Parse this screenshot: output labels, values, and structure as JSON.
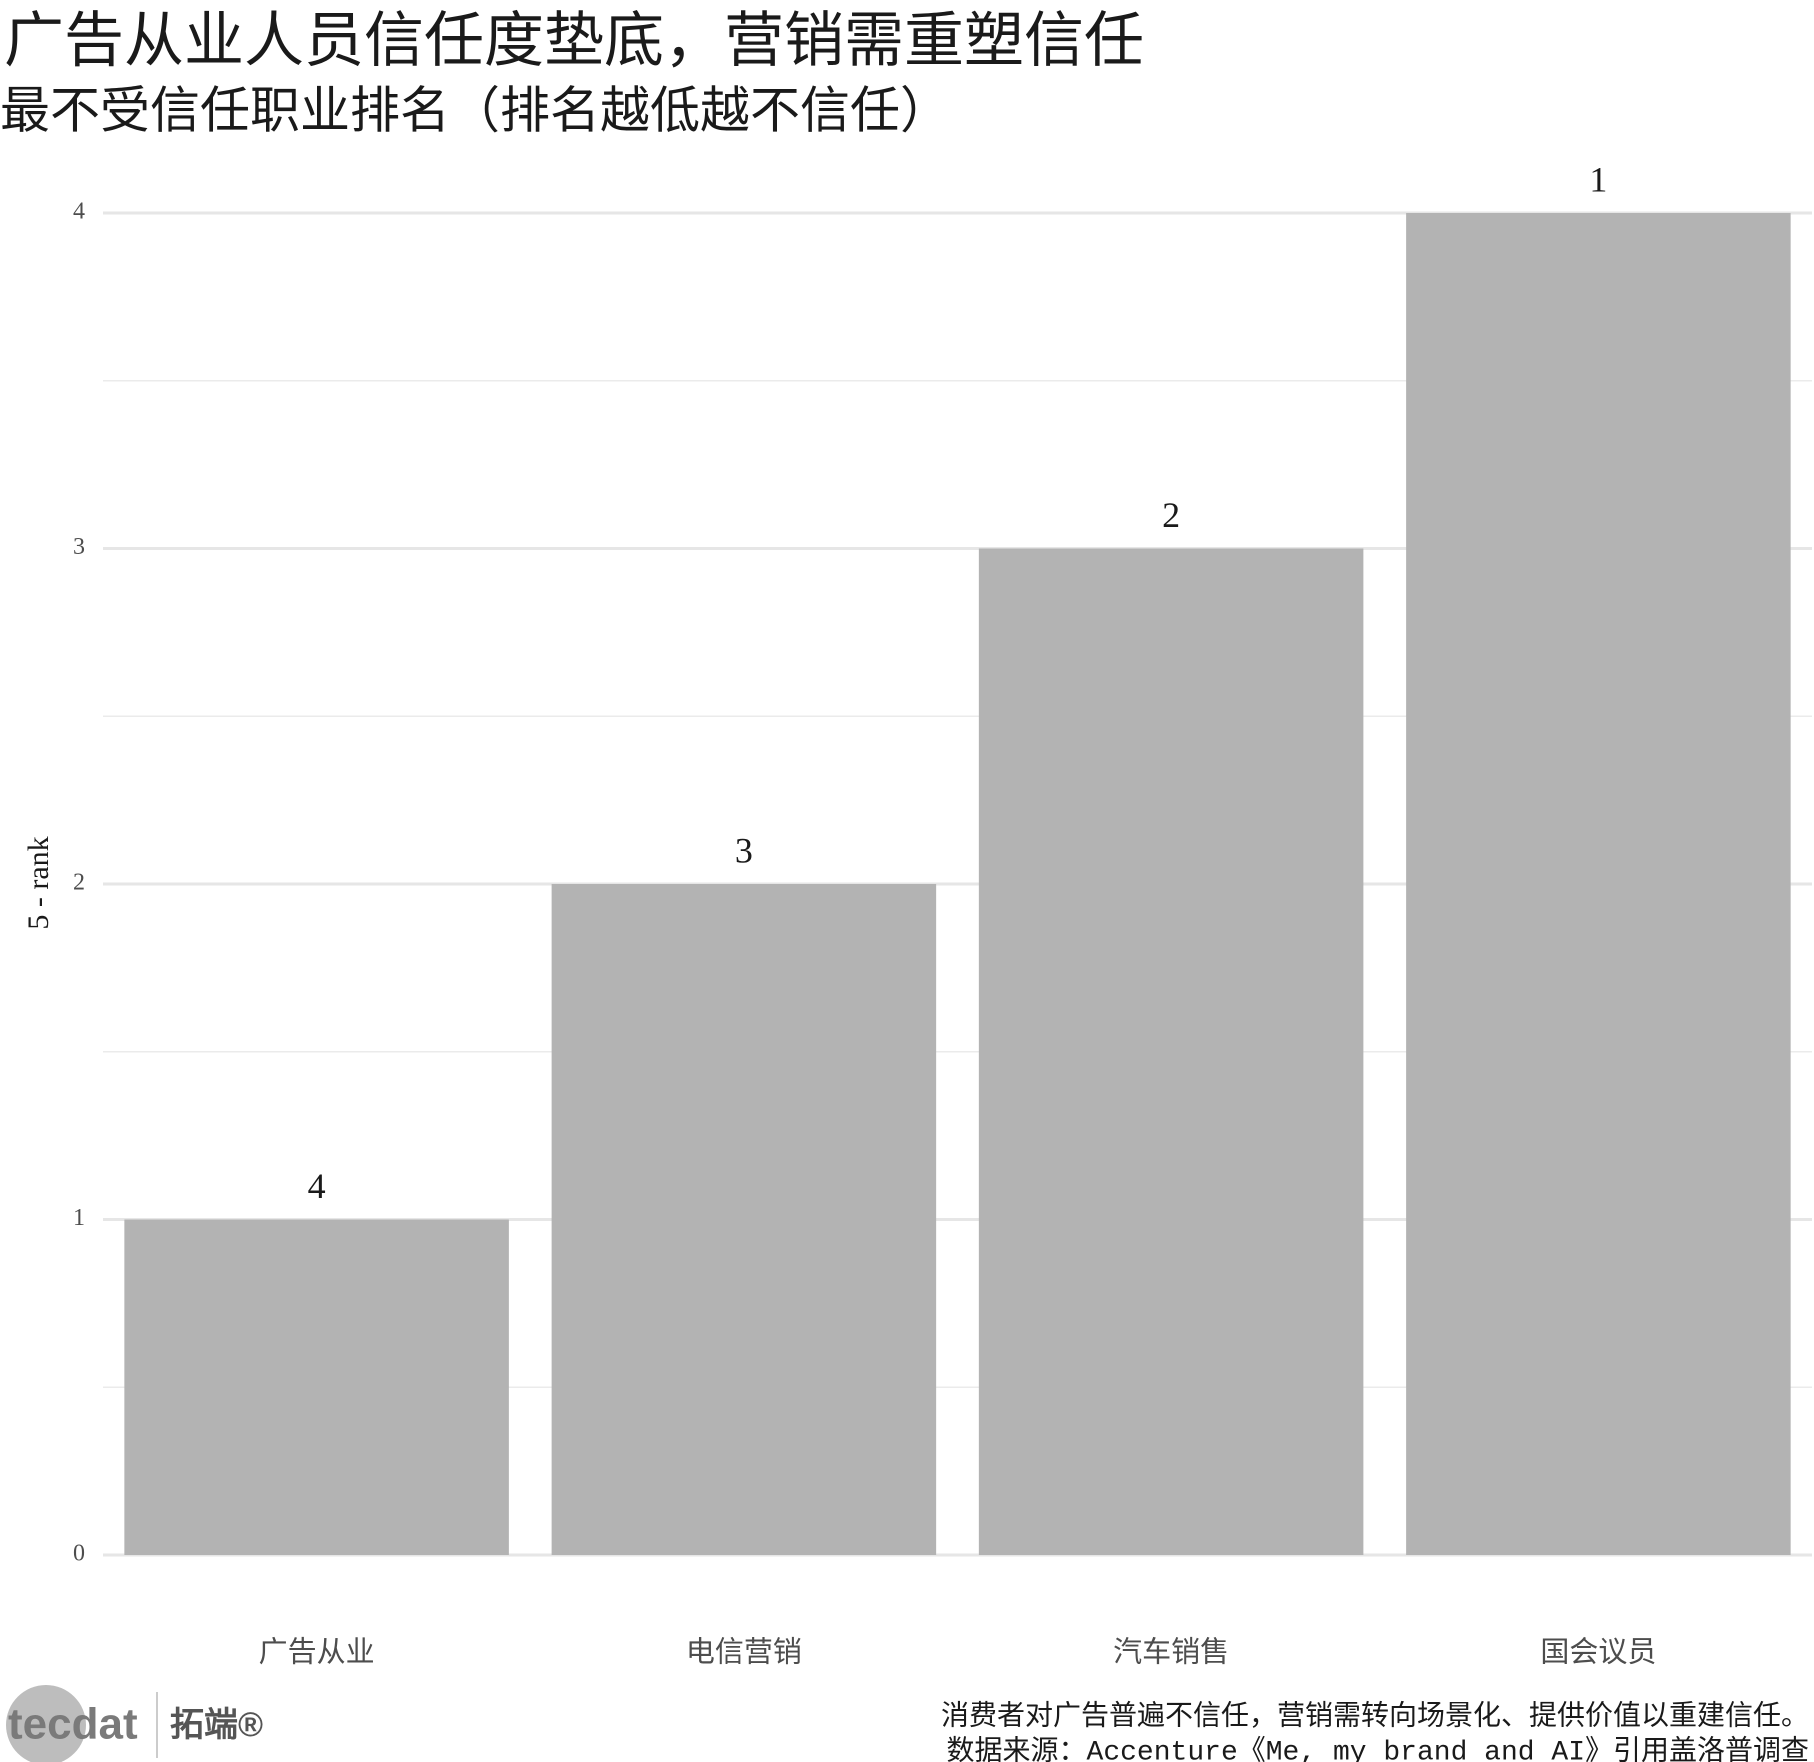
{
  "chart_data": {
    "type": "bar",
    "title": "广告从业人员信任度垫底，营销需重塑信任",
    "subtitle": "最不受信任职业排名（排名越低越不信任）",
    "y_label": "5 - rank",
    "categories": [
      "广告从业",
      "电信营销",
      "汽车销售",
      "国会议员"
    ],
    "values": [
      1,
      2,
      3,
      4
    ],
    "ranks": [
      4,
      3,
      2,
      1
    ],
    "color": "#b3b3b3",
    "ylim": [
      0,
      4
    ],
    "yticks": [
      0,
      1,
      2,
      3,
      4
    ],
    "grid": true,
    "caption": [
      "消费者对广告普遍不信任，营销需转向场景化、提供价值以重建信任。",
      "数据来源：Accenture《Me, my brand and AI》引用盖洛普调查"
    ],
    "logo": {
      "brand": "tecdat",
      "name": "拓端®"
    }
  }
}
